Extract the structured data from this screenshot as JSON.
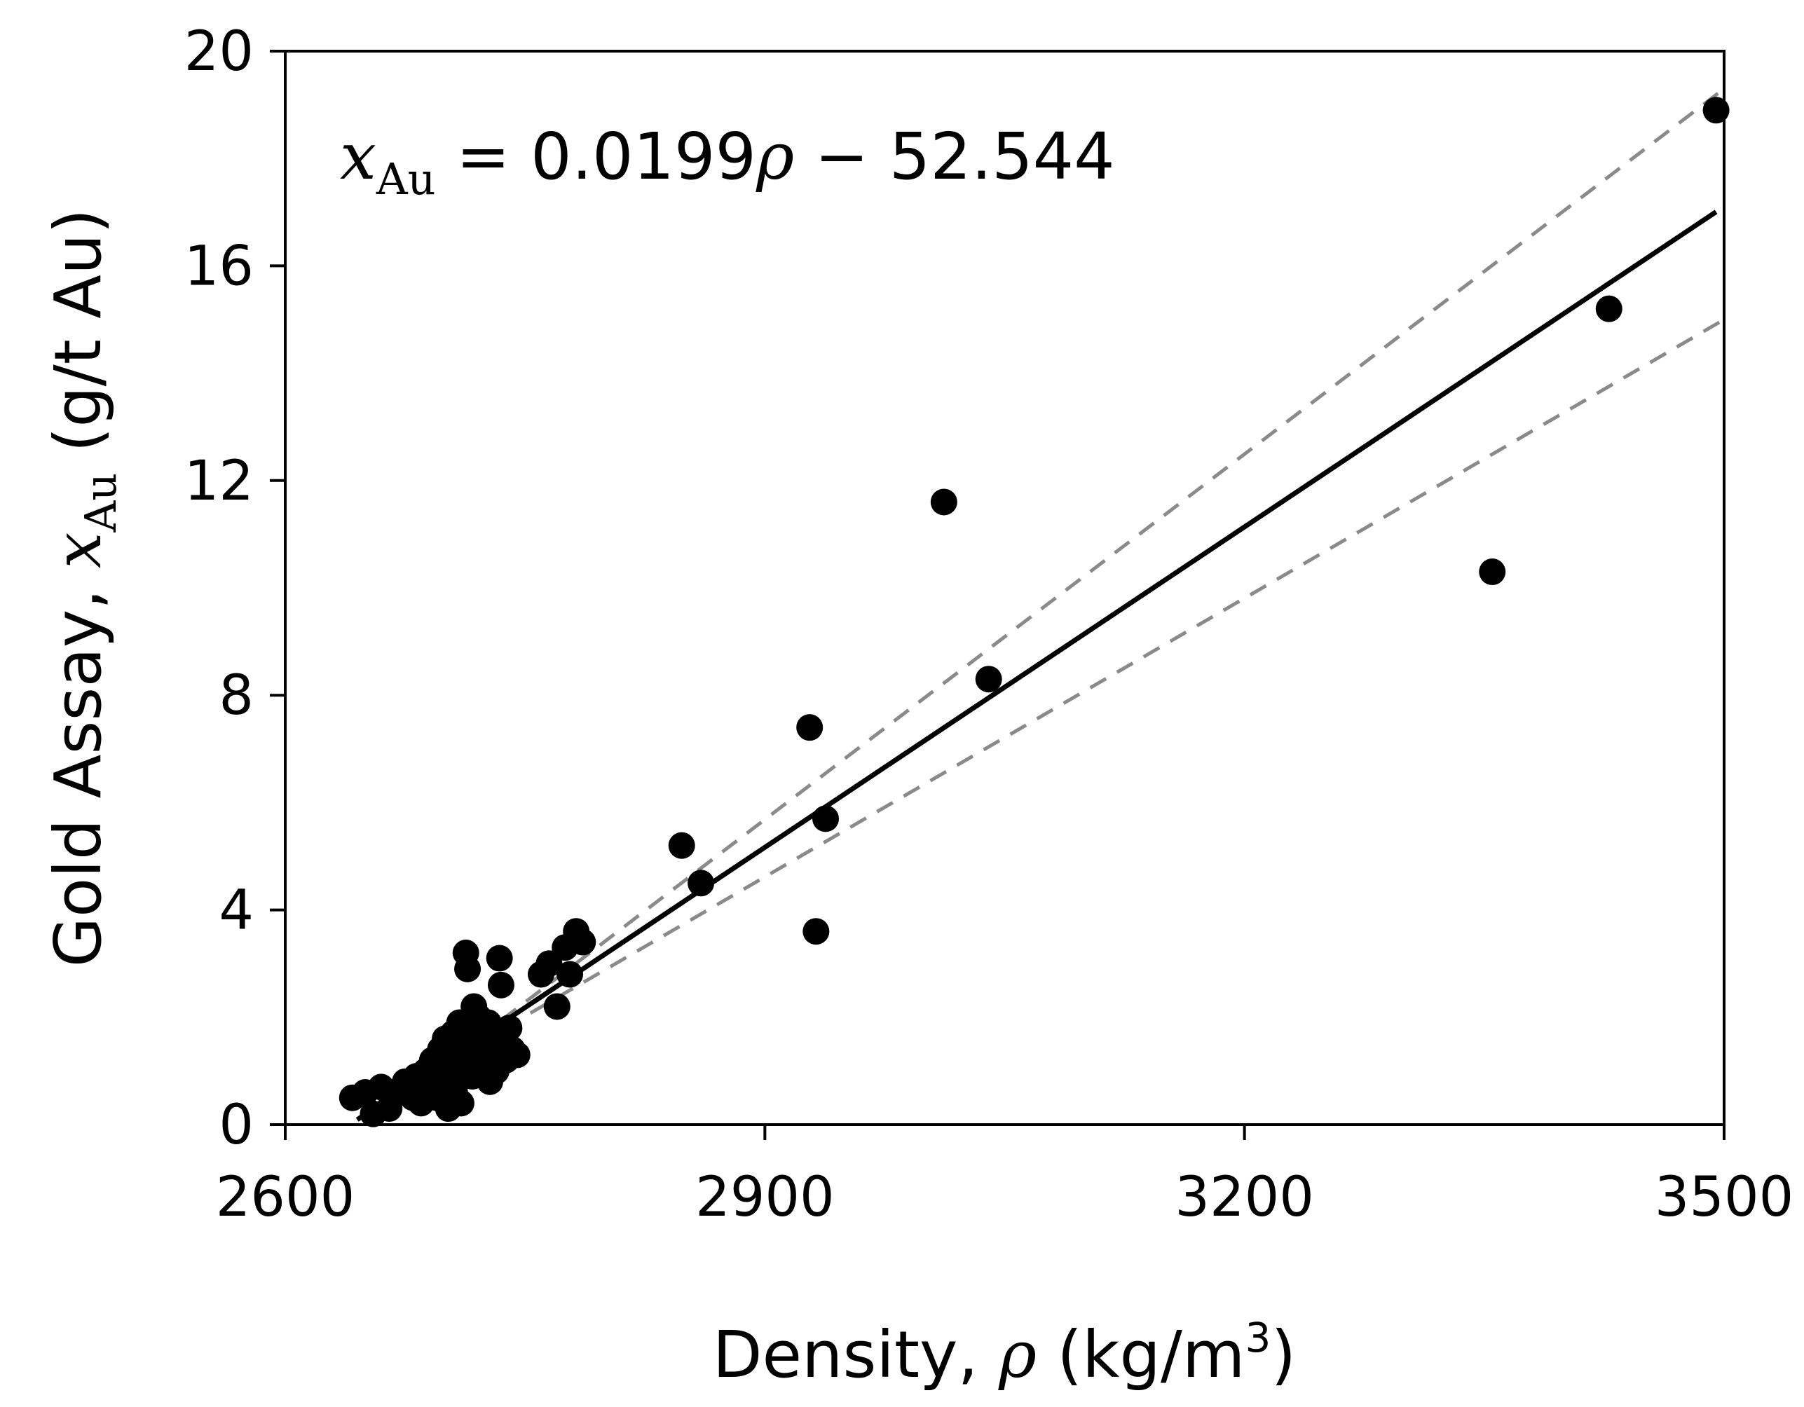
{
  "chart_data": {
    "type": "scatter",
    "title": "",
    "xlabel": {
      "prefix": "Density, ",
      "symbol": "ρ",
      "units_open": " (kg/m",
      "units_power": "3",
      "units_close": ")"
    },
    "ylabel": {
      "prefix": "Gold Assay, ",
      "symbol": "x",
      "subscript": "Au",
      "units": " (g/t Au)"
    },
    "xlim": [
      2600,
      3500
    ],
    "ylim": [
      0,
      20
    ],
    "xticks": [
      2600,
      2900,
      3200,
      3500
    ],
    "yticks": [
      0,
      4,
      8,
      12,
      16,
      20
    ],
    "grid": false,
    "annotation": {
      "symbol": "x",
      "subscript": "Au",
      "equals": " = 0.0199",
      "rho": "ρ",
      "rest": " − 52.544"
    },
    "fit_line": {
      "slope": 0.0199,
      "intercept": -52.544,
      "x_range": [
        2645,
        3495
      ],
      "color": "#000000",
      "style": "solid"
    },
    "confidence_bounds": [
      {
        "name": "upper",
        "points": [
          [
            2720,
            1.6
          ],
          [
            3500,
            19.3
          ]
        ],
        "color": "#8a8a8a",
        "style": "dashed"
      },
      {
        "name": "lower",
        "points": [
          [
            2720,
            1.5
          ],
          [
            3500,
            15.0
          ]
        ],
        "color": "#8a8a8a",
        "style": "dashed"
      }
    ],
    "series": [
      {
        "name": "samples",
        "marker_color": "#000000",
        "points": [
          [
            2642,
            0.5
          ],
          [
            2650,
            0.6
          ],
          [
            2655,
            0.2
          ],
          [
            2660,
            0.7
          ],
          [
            2665,
            0.3
          ],
          [
            2670,
            0.6
          ],
          [
            2675,
            0.8
          ],
          [
            2680,
            0.5
          ],
          [
            2682,
            0.9
          ],
          [
            2685,
            0.4
          ],
          [
            2688,
            1.0
          ],
          [
            2690,
            0.7
          ],
          [
            2692,
            1.2
          ],
          [
            2695,
            0.5
          ],
          [
            2697,
            1.4
          ],
          [
            2699,
            0.8
          ],
          [
            2700,
            1.6
          ],
          [
            2702,
            0.3
          ],
          [
            2703,
            1.1
          ],
          [
            2705,
            1.7
          ],
          [
            2706,
            0.6
          ],
          [
            2708,
            1.3
          ],
          [
            2709,
            1.9
          ],
          [
            2710,
            0.4
          ],
          [
            2711,
            1.5
          ],
          [
            2712,
            1.0
          ],
          [
            2713,
            3.2
          ],
          [
            2714,
            2.9
          ],
          [
            2715,
            1.8
          ],
          [
            2716,
            1.2
          ],
          [
            2717,
            0.9
          ],
          [
            2718,
            2.2
          ],
          [
            2719,
            1.6
          ],
          [
            2720,
            1.4
          ],
          [
            2721,
            2.0
          ],
          [
            2722,
            1.1
          ],
          [
            2723,
            1.7
          ],
          [
            2725,
            1.3
          ],
          [
            2727,
            1.9
          ],
          [
            2728,
            0.8
          ],
          [
            2730,
            1.5
          ],
          [
            2732,
            1.0
          ],
          [
            2734,
            3.1
          ],
          [
            2735,
            2.6
          ],
          [
            2736,
            1.6
          ],
          [
            2738,
            1.2
          ],
          [
            2740,
            1.8
          ],
          [
            2742,
            1.4
          ],
          [
            2745,
            1.3
          ],
          [
            2760,
            2.8
          ],
          [
            2765,
            3.0
          ],
          [
            2770,
            2.2
          ],
          [
            2775,
            3.3
          ],
          [
            2778,
            2.8
          ],
          [
            2782,
            3.6
          ],
          [
            2786,
            3.4
          ],
          [
            2848,
            5.2
          ],
          [
            2860,
            4.5
          ],
          [
            2928,
            7.4
          ],
          [
            2932,
            3.6
          ],
          [
            2938,
            5.7
          ],
          [
            3012,
            11.6
          ],
          [
            3040,
            8.3
          ],
          [
            3355,
            10.3
          ],
          [
            3428,
            15.2
          ],
          [
            3495,
            18.9
          ]
        ]
      }
    ]
  }
}
